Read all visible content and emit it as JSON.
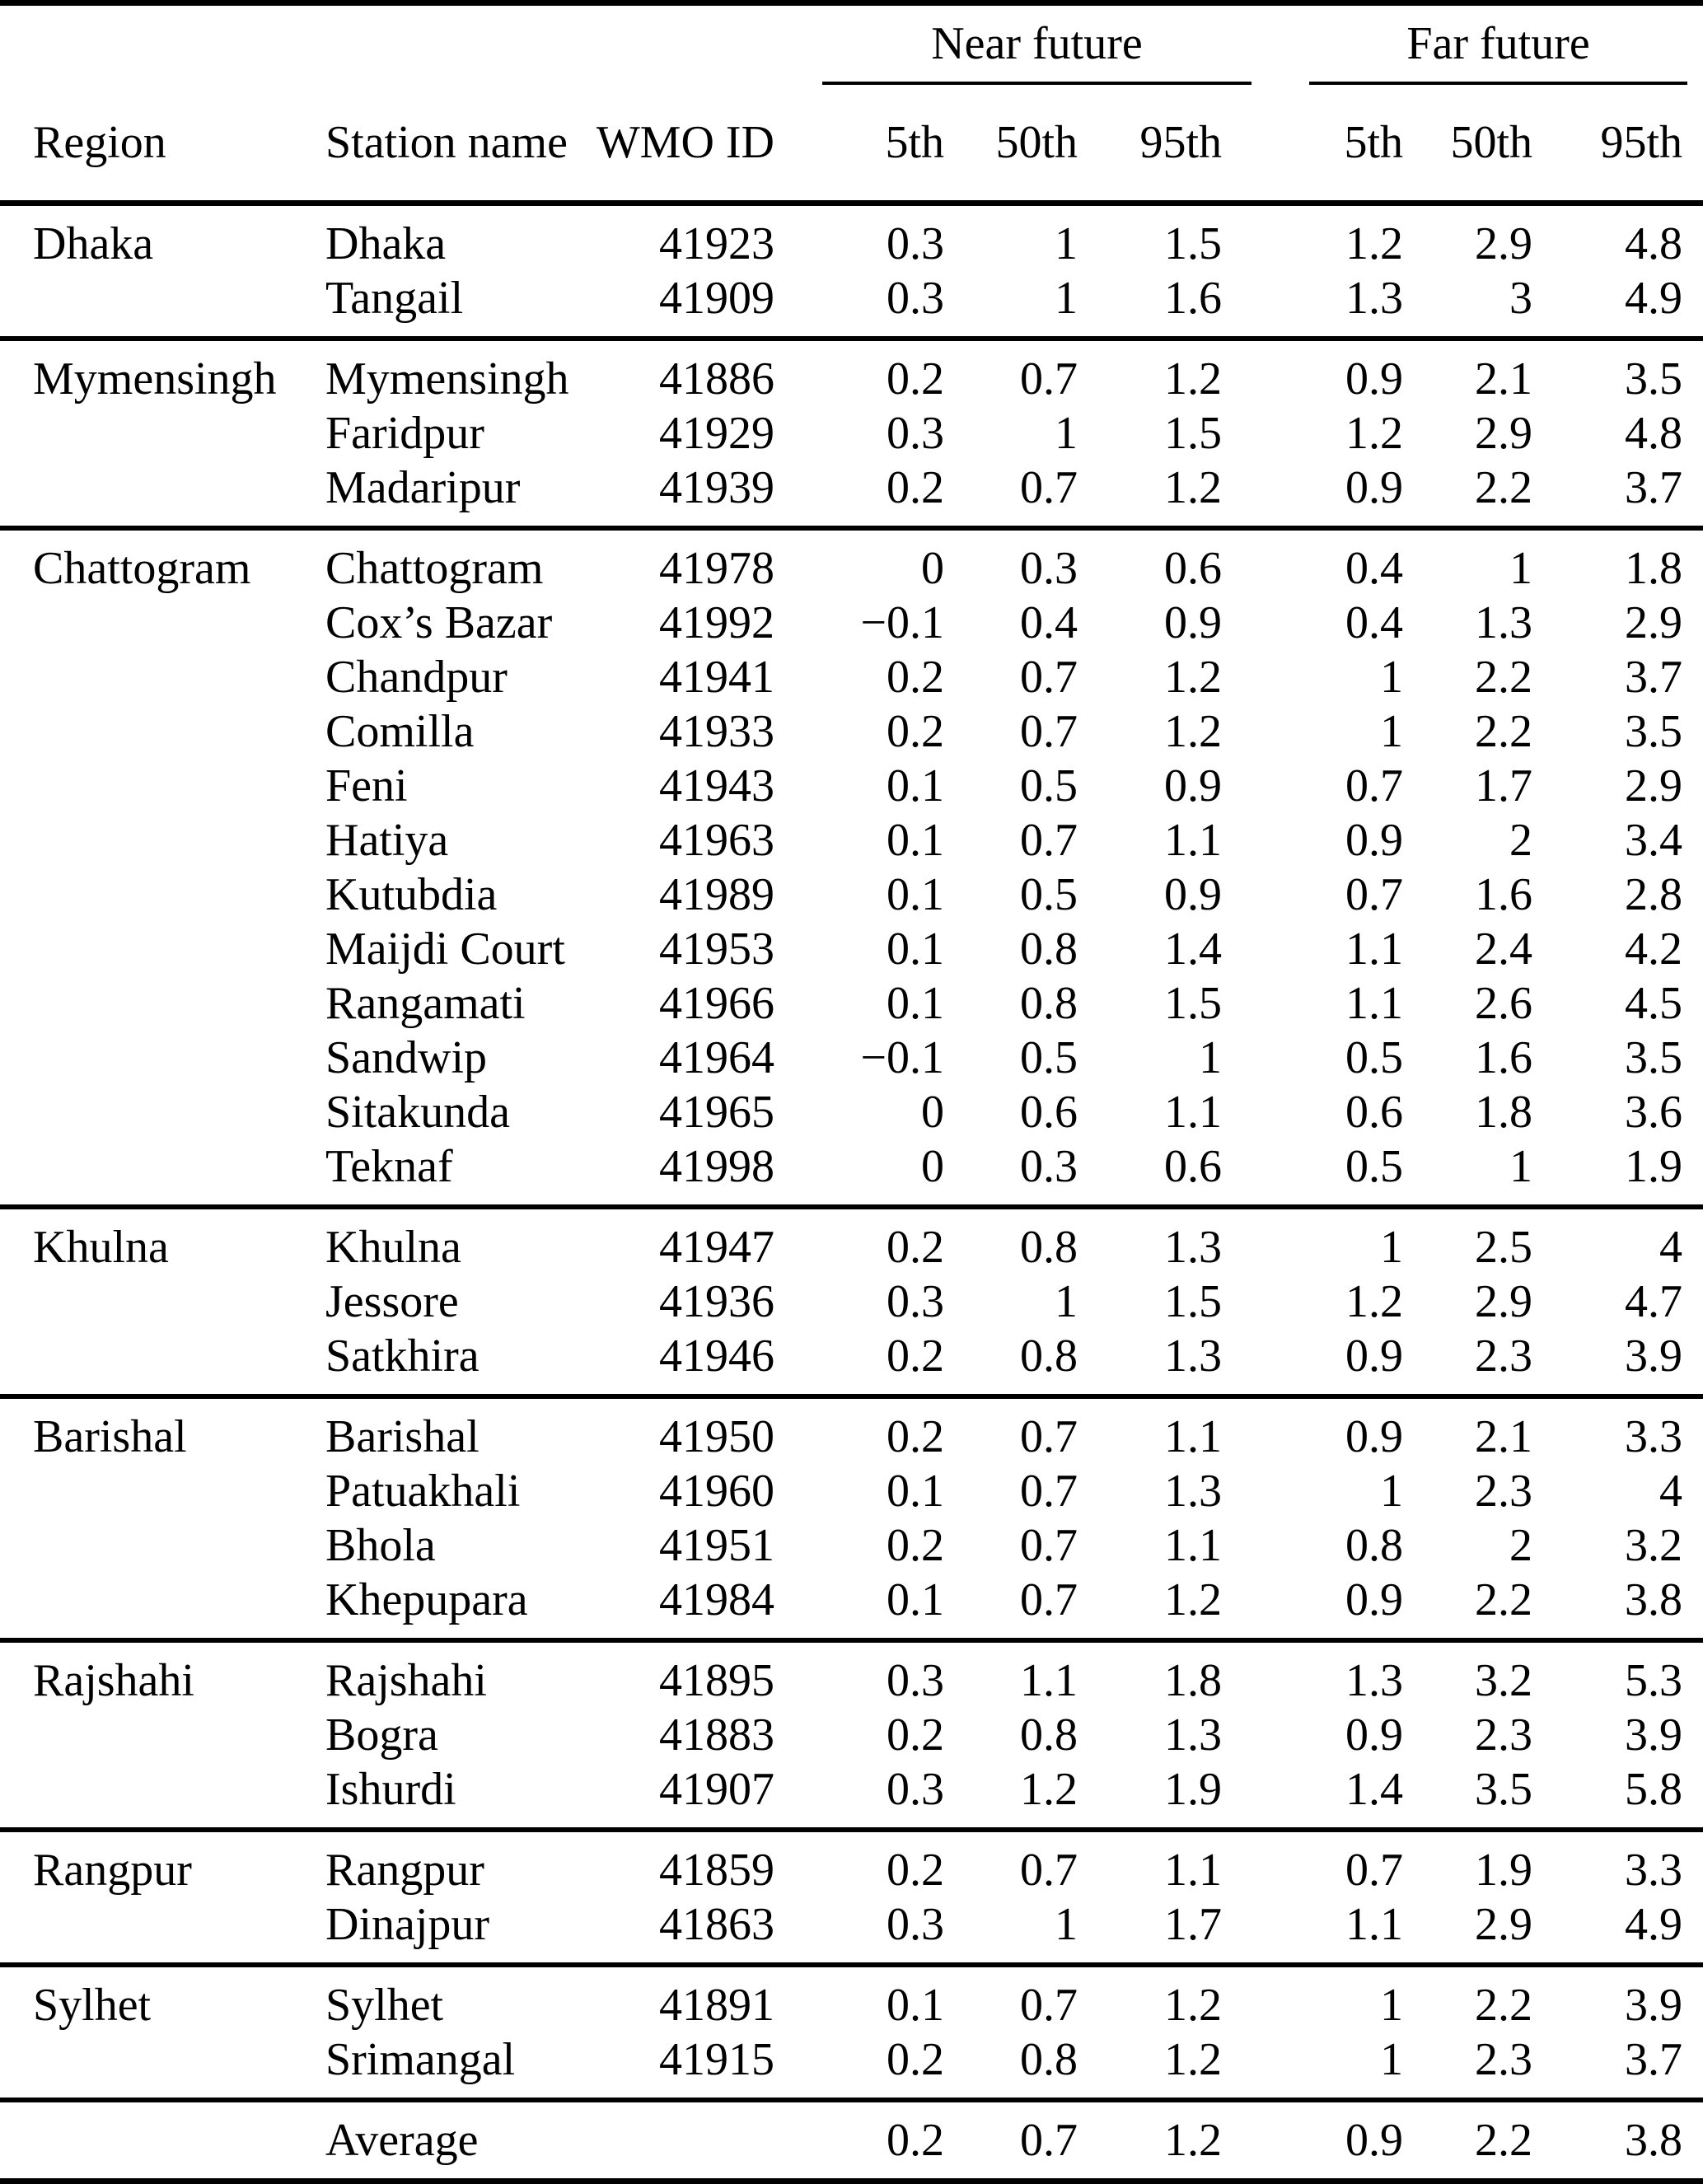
{
  "table": {
    "group_headers": [
      "Near future",
      "Far future"
    ],
    "columns": {
      "region": "Region",
      "station": "Station name",
      "wmo": "WMO ID",
      "p5": "5th",
      "p50": "50th",
      "p95": "95th"
    },
    "sections": [
      {
        "region": "Dhaka",
        "rows": [
          {
            "station": "Dhaka",
            "wmo": "41923",
            "near": [
              "0.3",
              "1",
              "1.5"
            ],
            "far": [
              "1.2",
              "2.9",
              "4.8"
            ]
          },
          {
            "station": "Tangail",
            "wmo": "41909",
            "near": [
              "0.3",
              "1",
              "1.6"
            ],
            "far": [
              "1.3",
              "3",
              "4.9"
            ]
          }
        ]
      },
      {
        "region": "Mymensingh",
        "rows": [
          {
            "station": "Mymensingh",
            "wmo": "41886",
            "near": [
              "0.2",
              "0.7",
              "1.2"
            ],
            "far": [
              "0.9",
              "2.1",
              "3.5"
            ]
          },
          {
            "station": "Faridpur",
            "wmo": "41929",
            "near": [
              "0.3",
              "1",
              "1.5"
            ],
            "far": [
              "1.2",
              "2.9",
              "4.8"
            ]
          },
          {
            "station": "Madaripur",
            "wmo": "41939",
            "near": [
              "0.2",
              "0.7",
              "1.2"
            ],
            "far": [
              "0.9",
              "2.2",
              "3.7"
            ]
          }
        ]
      },
      {
        "region": "Chattogram",
        "rows": [
          {
            "station": "Chattogram",
            "wmo": "41978",
            "near": [
              "0",
              "0.3",
              "0.6"
            ],
            "far": [
              "0.4",
              "1",
              "1.8"
            ]
          },
          {
            "station": "Cox’s Bazar",
            "wmo": "41992",
            "near": [
              "−0.1",
              "0.4",
              "0.9"
            ],
            "far": [
              "0.4",
              "1.3",
              "2.9"
            ]
          },
          {
            "station": "Chandpur",
            "wmo": "41941",
            "near": [
              "0.2",
              "0.7",
              "1.2"
            ],
            "far": [
              "1",
              "2.2",
              "3.7"
            ]
          },
          {
            "station": "Comilla",
            "wmo": "41933",
            "near": [
              "0.2",
              "0.7",
              "1.2"
            ],
            "far": [
              "1",
              "2.2",
              "3.5"
            ]
          },
          {
            "station": "Feni",
            "wmo": "41943",
            "near": [
              "0.1",
              "0.5",
              "0.9"
            ],
            "far": [
              "0.7",
              "1.7",
              "2.9"
            ]
          },
          {
            "station": "Hatiya",
            "wmo": "41963",
            "near": [
              "0.1",
              "0.7",
              "1.1"
            ],
            "far": [
              "0.9",
              "2",
              "3.4"
            ]
          },
          {
            "station": "Kutubdia",
            "wmo": "41989",
            "near": [
              "0.1",
              "0.5",
              "0.9"
            ],
            "far": [
              "0.7",
              "1.6",
              "2.8"
            ]
          },
          {
            "station": "Maijdi Court",
            "wmo": "41953",
            "near": [
              "0.1",
              "0.8",
              "1.4"
            ],
            "far": [
              "1.1",
              "2.4",
              "4.2"
            ]
          },
          {
            "station": "Rangamati",
            "wmo": "41966",
            "near": [
              "0.1",
              "0.8",
              "1.5"
            ],
            "far": [
              "1.1",
              "2.6",
              "4.5"
            ]
          },
          {
            "station": "Sandwip",
            "wmo": "41964",
            "near": [
              "−0.1",
              "0.5",
              "1"
            ],
            "far": [
              "0.5",
              "1.6",
              "3.5"
            ]
          },
          {
            "station": "Sitakunda",
            "wmo": "41965",
            "near": [
              "0",
              "0.6",
              "1.1"
            ],
            "far": [
              "0.6",
              "1.8",
              "3.6"
            ]
          },
          {
            "station": "Teknaf",
            "wmo": "41998",
            "near": [
              "0",
              "0.3",
              "0.6"
            ],
            "far": [
              "0.5",
              "1",
              "1.9"
            ]
          }
        ]
      },
      {
        "region": "Khulna",
        "rows": [
          {
            "station": "Khulna",
            "wmo": "41947",
            "near": [
              "0.2",
              "0.8",
              "1.3"
            ],
            "far": [
              "1",
              "2.5",
              "4"
            ]
          },
          {
            "station": "Jessore",
            "wmo": "41936",
            "near": [
              "0.3",
              "1",
              "1.5"
            ],
            "far": [
              "1.2",
              "2.9",
              "4.7"
            ]
          },
          {
            "station": "Satkhira",
            "wmo": "41946",
            "near": [
              "0.2",
              "0.8",
              "1.3"
            ],
            "far": [
              "0.9",
              "2.3",
              "3.9"
            ]
          }
        ]
      },
      {
        "region": "Barishal",
        "rows": [
          {
            "station": "Barishal",
            "wmo": "41950",
            "near": [
              "0.2",
              "0.7",
              "1.1"
            ],
            "far": [
              "0.9",
              "2.1",
              "3.3"
            ]
          },
          {
            "station": "Patuakhali",
            "wmo": "41960",
            "near": [
              "0.1",
              "0.7",
              "1.3"
            ],
            "far": [
              "1",
              "2.3",
              "4"
            ]
          },
          {
            "station": "Bhola",
            "wmo": "41951",
            "near": [
              "0.2",
              "0.7",
              "1.1"
            ],
            "far": [
              "0.8",
              "2",
              "3.2"
            ]
          },
          {
            "station": "Khepupara",
            "wmo": "41984",
            "near": [
              "0.1",
              "0.7",
              "1.2"
            ],
            "far": [
              "0.9",
              "2.2",
              "3.8"
            ]
          }
        ]
      },
      {
        "region": "Rajshahi",
        "rows": [
          {
            "station": "Rajshahi",
            "wmo": "41895",
            "near": [
              "0.3",
              "1.1",
              "1.8"
            ],
            "far": [
              "1.3",
              "3.2",
              "5.3"
            ]
          },
          {
            "station": "Bogra",
            "wmo": "41883",
            "near": [
              "0.2",
              "0.8",
              "1.3"
            ],
            "far": [
              "0.9",
              "2.3",
              "3.9"
            ]
          },
          {
            "station": "Ishurdi",
            "wmo": "41907",
            "near": [
              "0.3",
              "1.2",
              "1.9"
            ],
            "far": [
              "1.4",
              "3.5",
              "5.8"
            ]
          }
        ]
      },
      {
        "region": "Rangpur",
        "rows": [
          {
            "station": "Rangpur",
            "wmo": "41859",
            "near": [
              "0.2",
              "0.7",
              "1.1"
            ],
            "far": [
              "0.7",
              "1.9",
              "3.3"
            ]
          },
          {
            "station": "Dinajpur",
            "wmo": "41863",
            "near": [
              "0.3",
              "1",
              "1.7"
            ],
            "far": [
              "1.1",
              "2.9",
              "4.9"
            ]
          }
        ]
      },
      {
        "region": "Sylhet",
        "rows": [
          {
            "station": "Sylhet",
            "wmo": "41891",
            "near": [
              "0.1",
              "0.7",
              "1.2"
            ],
            "far": [
              "1",
              "2.2",
              "3.9"
            ]
          },
          {
            "station": "Srimangal",
            "wmo": "41915",
            "near": [
              "0.2",
              "0.8",
              "1.2"
            ],
            "far": [
              "1",
              "2.3",
              "3.7"
            ]
          }
        ]
      }
    ],
    "average": {
      "label": "Average",
      "near": [
        "0.2",
        "0.7",
        "1.2"
      ],
      "far": [
        "0.9",
        "2.2",
        "3.8"
      ]
    }
  }
}
